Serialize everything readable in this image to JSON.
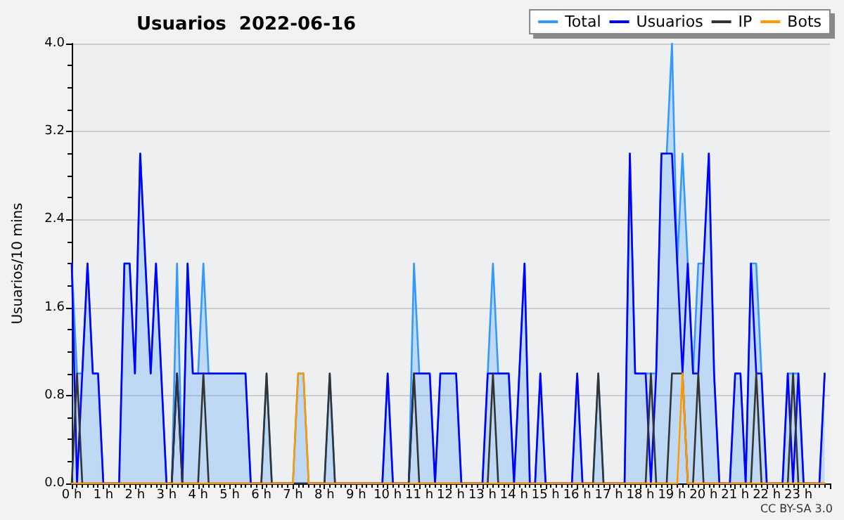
{
  "chart_data": {
    "type": "line",
    "title": "Usuarios  2022-06-16",
    "ylabel": "Usuarios/10 mins",
    "annotations": [
      "CC BY-SA 3.0"
    ],
    "x": [
      0,
      0.167,
      0.333,
      0.5,
      0.667,
      0.833,
      1,
      1.167,
      1.333,
      1.5,
      1.667,
      1.833,
      2,
      2.167,
      2.333,
      2.5,
      2.667,
      2.833,
      3,
      3.167,
      3.333,
      3.5,
      3.667,
      3.833,
      4,
      4.167,
      4.333,
      4.5,
      4.667,
      4.833,
      5,
      5.167,
      5.333,
      5.5,
      5.667,
      5.833,
      6,
      6.167,
      6.333,
      6.5,
      6.667,
      6.833,
      7,
      7.167,
      7.333,
      7.5,
      7.667,
      7.833,
      8,
      8.167,
      8.333,
      8.5,
      8.667,
      8.833,
      9,
      9.167,
      9.333,
      9.5,
      9.667,
      9.833,
      10,
      10.167,
      10.333,
      10.5,
      10.667,
      10.833,
      11,
      11.167,
      11.333,
      11.5,
      11.667,
      11.833,
      12,
      12.167,
      12.333,
      12.5,
      12.667,
      12.833,
      13,
      13.167,
      13.333,
      13.5,
      13.667,
      13.833,
      14,
      14.167,
      14.333,
      14.5,
      14.667,
      14.833,
      15,
      15.167,
      15.333,
      15.5,
      15.667,
      15.833,
      16,
      16.167,
      16.333,
      16.5,
      16.667,
      16.833,
      17,
      17.167,
      17.333,
      17.5,
      17.667,
      17.833,
      18,
      18.167,
      18.333,
      18.5,
      18.667,
      18.833,
      19,
      19.167,
      19.333,
      19.5,
      19.667,
      19.833,
      20,
      20.167,
      20.333,
      20.5,
      20.667,
      20.833,
      21,
      21.167,
      21.333,
      21.5,
      21.667,
      21.833,
      22,
      22.167,
      22.333,
      22.5,
      22.667,
      22.833,
      23,
      23.167,
      23.333,
      23.5,
      23.667,
      23.833
    ],
    "series": [
      {
        "name": "Total",
        "type": "area",
        "color": "#3399ff",
        "values": [
          2,
          1,
          1,
          2,
          1,
          1,
          0,
          0,
          0,
          0,
          2,
          2,
          1,
          3,
          2,
          1,
          2,
          1,
          0,
          0,
          2,
          0,
          2,
          1,
          1,
          2,
          1,
          1,
          1,
          1,
          1,
          1,
          1,
          1,
          0,
          0,
          0,
          1,
          0,
          0,
          0,
          0,
          0,
          1,
          1,
          0,
          0,
          0,
          0,
          1,
          0,
          0,
          0,
          0,
          0,
          0,
          0,
          0,
          0,
          0,
          1,
          0,
          0,
          0,
          0,
          2,
          1,
          1,
          1,
          0,
          1,
          1,
          1,
          1,
          0,
          0,
          0,
          0,
          0,
          1,
          2,
          1,
          1,
          1,
          0,
          1,
          2,
          0,
          0,
          1,
          0,
          0,
          0,
          0,
          0,
          0,
          1,
          0,
          0,
          0,
          1,
          0,
          0,
          0,
          0,
          0,
          3,
          1,
          1,
          1,
          1,
          1,
          3,
          3,
          4,
          2,
          3,
          2,
          1,
          2,
          2,
          3,
          1,
          0,
          0,
          0,
          1,
          1,
          0,
          2,
          2,
          1,
          0,
          0,
          0,
          0,
          1,
          1,
          1,
          0,
          0,
          0,
          0,
          1
        ]
      },
      {
        "name": "Usuarios",
        "color": "#0000ff",
        "values": [
          2,
          0,
          1,
          2,
          1,
          1,
          0,
          0,
          0,
          0,
          2,
          2,
          1,
          3,
          2,
          1,
          2,
          1,
          0,
          0,
          1,
          0,
          2,
          1,
          1,
          1,
          1,
          1,
          1,
          1,
          1,
          1,
          1,
          1,
          0,
          0,
          0,
          0,
          0,
          0,
          0,
          0,
          0,
          0,
          0,
          0,
          0,
          0,
          0,
          0,
          0,
          0,
          0,
          0,
          0,
          0,
          0,
          0,
          0,
          0,
          1,
          0,
          0,
          0,
          0,
          1,
          1,
          1,
          1,
          0,
          1,
          1,
          1,
          1,
          0,
          0,
          0,
          0,
          0,
          1,
          1,
          1,
          1,
          1,
          0,
          1,
          2,
          0,
          0,
          1,
          0,
          0,
          0,
          0,
          0,
          0,
          1,
          0,
          0,
          0,
          0,
          0,
          0,
          0,
          0,
          0,
          3,
          1,
          1,
          1,
          0,
          1,
          3,
          3,
          3,
          2,
          1,
          2,
          1,
          1,
          2,
          3,
          1,
          0,
          0,
          0,
          1,
          1,
          0,
          2,
          1,
          1,
          0,
          0,
          0,
          0,
          1,
          0,
          1,
          0,
          0,
          0,
          0,
          1
        ]
      },
      {
        "name": "IP",
        "color": "#333333",
        "values": [
          0,
          1,
          0,
          0,
          0,
          0,
          0,
          0,
          0,
          0,
          0,
          0,
          0,
          0,
          0,
          0,
          0,
          0,
          0,
          0,
          1,
          0,
          0,
          0,
          0,
          1,
          0,
          0,
          0,
          0,
          0,
          0,
          0,
          0,
          0,
          0,
          0,
          1,
          0,
          0,
          0,
          0,
          0,
          0,
          0,
          0,
          0,
          0,
          0,
          1,
          0,
          0,
          0,
          0,
          0,
          0,
          0,
          0,
          0,
          0,
          0,
          0,
          0,
          0,
          0,
          1,
          0,
          0,
          0,
          0,
          0,
          0,
          0,
          0,
          0,
          0,
          0,
          0,
          0,
          0,
          1,
          0,
          0,
          0,
          0,
          0,
          0,
          0,
          0,
          0,
          0,
          0,
          0,
          0,
          0,
          0,
          0,
          0,
          0,
          0,
          1,
          0,
          0,
          0,
          0,
          0,
          0,
          0,
          0,
          0,
          1,
          0,
          0,
          0,
          1,
          1,
          1,
          0,
          0,
          1,
          0,
          0,
          0,
          0,
          0,
          0,
          0,
          0,
          0,
          0,
          1,
          0,
          0,
          0,
          0,
          0,
          0,
          1,
          0,
          0,
          0,
          0,
          0,
          0
        ]
      },
      {
        "name": "Bots",
        "color": "#ff9900",
        "values": [
          0,
          0,
          0,
          0,
          0,
          0,
          0,
          0,
          0,
          0,
          0,
          0,
          0,
          0,
          0,
          0,
          0,
          0,
          0,
          0,
          0,
          0,
          0,
          0,
          0,
          0,
          0,
          0,
          0,
          0,
          0,
          0,
          0,
          0,
          0,
          0,
          0,
          0,
          0,
          0,
          0,
          0,
          0,
          1,
          1,
          0,
          0,
          0,
          0,
          0,
          0,
          0,
          0,
          0,
          0,
          0,
          0,
          0,
          0,
          0,
          0,
          0,
          0,
          0,
          0,
          0,
          0,
          0,
          0,
          0,
          0,
          0,
          0,
          0,
          0,
          0,
          0,
          0,
          0,
          0,
          0,
          0,
          0,
          0,
          0,
          0,
          0,
          0,
          0,
          0,
          0,
          0,
          0,
          0,
          0,
          0,
          0,
          0,
          0,
          0,
          0,
          0,
          0,
          0,
          0,
          0,
          0,
          0,
          0,
          0,
          0,
          0,
          0,
          0,
          0,
          0,
          1,
          0,
          0,
          0,
          0,
          0,
          0,
          0,
          0,
          0,
          0,
          0,
          0,
          0,
          0,
          0,
          0,
          0,
          0,
          0,
          0,
          0,
          0,
          0,
          0,
          0,
          0,
          0
        ]
      }
    ],
    "xlim": [
      0,
      24
    ],
    "xticks": [
      {
        "value": 0,
        "label": "0 h"
      },
      {
        "value": 1,
        "label": "1 h"
      },
      {
        "value": 2,
        "label": "2 h"
      },
      {
        "value": 3,
        "label": "3 h"
      },
      {
        "value": 4,
        "label": "4 h"
      },
      {
        "value": 5,
        "label": "5 h"
      },
      {
        "value": 6,
        "label": "6 h"
      },
      {
        "value": 7,
        "label": "7 h"
      },
      {
        "value": 8,
        "label": "8 h"
      },
      {
        "value": 9,
        "label": "9 h"
      },
      {
        "value": 10,
        "label": "10 h"
      },
      {
        "value": 11,
        "label": "11 h"
      },
      {
        "value": 12,
        "label": "12 h"
      },
      {
        "value": 13,
        "label": "13 h"
      },
      {
        "value": 14,
        "label": "14 h"
      },
      {
        "value": 15,
        "label": "15 h"
      },
      {
        "value": 16,
        "label": "16 h"
      },
      {
        "value": 17,
        "label": "17 h"
      },
      {
        "value": 18,
        "label": "18 h"
      },
      {
        "value": 19,
        "label": "19 h"
      },
      {
        "value": 20,
        "label": "20 h"
      },
      {
        "value": 21,
        "label": "21 h"
      },
      {
        "value": 22,
        "label": "22 h"
      },
      {
        "value": 23,
        "label": "23 h"
      }
    ],
    "ylim": [
      0,
      4
    ],
    "yticks": [
      {
        "value": 0,
        "label": "0.0"
      },
      {
        "value": 0.8,
        "label": "0.8"
      },
      {
        "value": 1.6,
        "label": "1.6"
      },
      {
        "value": 2.4,
        "label": "2.4"
      },
      {
        "value": 3.2,
        "label": "3.2"
      },
      {
        "value": 4,
        "label": "4.0"
      }
    ],
    "grid": "y",
    "legend": "top right",
    "marker": "none",
    "line_style": "solid"
  }
}
